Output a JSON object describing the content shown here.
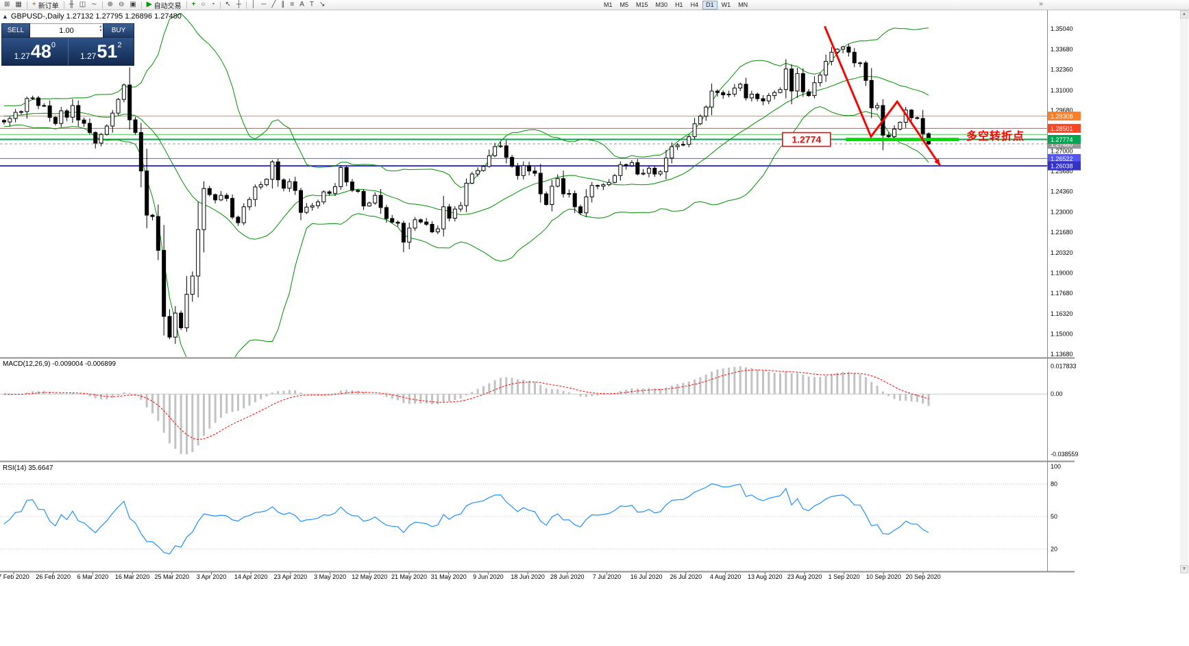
{
  "icons": {
    "collapse": "▲",
    "spin_up": "▴",
    "spin_down": "▾",
    "scroll_up": "▲",
    "scroll_down": "▼",
    "overflow": "»"
  },
  "colors": {
    "bollinger": "#008f00",
    "macd_hist": "#c2c2c2",
    "macd_signal": "#ff0000",
    "rsi_line": "#1e90ff",
    "trend": "#ff0000",
    "support": "#00dd00",
    "panel_top": "#2d5187",
    "panel_bottom": "#122a50",
    "level_orange": "#ff7f27",
    "level_red": "#ff4422",
    "level_green": "#00a651",
    "level_blue": "#5555ff",
    "level_darkblue": "#3333cc"
  },
  "toolbar": {
    "groups": [
      {
        "items": [
          {
            "n": "new-chart-icon",
            "g": "⊞"
          },
          {
            "n": "chart-profiles-icon",
            "g": "▦"
          }
        ]
      },
      {
        "items": [
          {
            "n": "new-order-button",
            "g": "+",
            "c": "#d48806",
            "label": "新订单"
          }
        ]
      },
      {
        "items": [
          {
            "n": "bar-chart-icon",
            "g": "╫"
          },
          {
            "n": "candlestick-chart-icon",
            "g": "◫"
          },
          {
            "n": "line-chart-icon",
            "g": "∼"
          }
        ]
      },
      {
        "items": [
          {
            "n": "zoom-in-icon",
            "g": "⊕"
          },
          {
            "n": "zoom-out-icon",
            "g": "⊖"
          },
          {
            "n": "tile-windows-icon",
            "g": "▣"
          }
        ]
      },
      {
        "items": [
          {
            "n": "autotrading-button",
            "g": "▶",
            "c": "#009900",
            "label": "自动交易"
          }
        ]
      },
      {
        "items": [
          {
            "n": "add-indicator-icon",
            "g": "+",
            "c": "#009900"
          },
          {
            "n": "shapes-icon",
            "g": "○"
          },
          {
            "n": "cycle-lines-icon",
            "g": "◔"
          }
        ]
      },
      {
        "items": [
          {
            "n": "cursor-icon",
            "g": "↖"
          },
          {
            "n": "crosshair-icon",
            "g": "┼"
          }
        ]
      },
      {
        "items": [
          {
            "n": "vertical-line-icon",
            "g": "│"
          },
          {
            "n": "horizontal-line-icon",
            "g": "─"
          },
          {
            "n": "trendline-icon",
            "g": "╱"
          },
          {
            "n": "equidistant-channel-icon",
            "g": "∥"
          },
          {
            "n": "fibonacci-icon",
            "g": "≡"
          },
          {
            "n": "text-icon",
            "g": "A"
          },
          {
            "n": "text-label-icon",
            "g": "T"
          },
          {
            "n": "arrow-object-icon",
            "g": "↘"
          }
        ]
      }
    ],
    "timeframes": [
      "M1",
      "M5",
      "M15",
      "M30",
      "H1",
      "H4",
      "D1",
      "W1",
      "MN"
    ],
    "active_timeframe": "D1"
  },
  "chart": {
    "title": "GBPUSD-,Daily 1.27132 1.27795 1.26896 1.27480",
    "one_click": {
      "sell_label": "SELL",
      "buy_label": "BUY",
      "volume": "1.00",
      "sell_price_small": "1.27",
      "sell_price_big": "48",
      "sell_price_sup": "0",
      "buy_price_small": "1.27",
      "buy_price_big": "51",
      "buy_price_sup": "2"
    }
  },
  "indicators": {
    "macd_label": "MACD(12,26,9) -0.009004 -0.006899",
    "macd_axis": [
      "0.017833",
      "0.00",
      "-0.038559"
    ],
    "rsi_label": "RSI(14) 35.6647",
    "rsi_axis": [
      "100",
      "80",
      "50",
      "20"
    ]
  },
  "dates": [
    "7 Feb 2020",
    "26 Feb 2020",
    "6 Mar 2020",
    "16 Mar 2020",
    "25 Mar 2020",
    "3 Apr 2020",
    "14 Apr 2020",
    "23 Apr 2020",
    "3 May 2020",
    "12 May 2020",
    "21 May 2020",
    "31 May 2020",
    "9 Jun 2020",
    "18 Jun 2020",
    "28 Jun 2020",
    "7 Jul 2020",
    "16 Jul 2020",
    "26 Jul 2020",
    "4 Aug 2020",
    "13 Aug 2020",
    "23 Aug 2020",
    "1 Sep 2020",
    "10 Sep 2020",
    "20 Sep 2020"
  ],
  "chart_data": {
    "type": "candlestick",
    "symbol": "GBPUSD-",
    "period": "Daily",
    "ohlc": {
      "open": 1.27132,
      "high": 1.27795,
      "low": 1.26896,
      "close": 1.2748
    },
    "ylim": [
      1.1349,
      1.363
    ],
    "y_axis_labels": [
      "1.35040",
      "1.33680",
      "1.32360",
      "1.31000",
      "1.29680",
      "1.28360",
      "1.27000",
      "1.25680",
      "1.24360",
      "1.23000",
      "1.21680",
      "1.20320",
      "1.19000",
      "1.17680",
      "1.16320",
      "1.15000",
      "1.13680"
    ],
    "closes": [
      1.2892,
      1.2915,
      1.2955,
      1.296,
      1.3046,
      1.305,
      1.3,
      1.2998,
      1.2922,
      1.2882,
      1.2965,
      1.2923,
      1.3,
      1.2905,
      1.2883,
      1.2823,
      1.2753,
      1.281,
      1.2865,
      1.295,
      1.304,
      1.3135,
      1.2906,
      1.2823,
      1.257,
      1.228,
      1.2271,
      1.2049,
      1.1615,
      1.1479,
      1.1637,
      1.154,
      1.176,
      1.188,
      1.2185,
      1.2455,
      1.2415,
      1.238,
      1.241,
      1.239,
      1.2267,
      1.223,
      1.2335,
      1.2383,
      1.2465,
      1.248,
      1.2516,
      1.263,
      1.2512,
      1.2457,
      1.25,
      1.2442,
      1.2298,
      1.2333,
      1.2342,
      1.2367,
      1.2433,
      1.2423,
      1.2467,
      1.2593,
      1.2498,
      1.2443,
      1.2436,
      1.234,
      1.236,
      1.241,
      1.233,
      1.2258,
      1.2234,
      1.2227,
      1.2103,
      1.2195,
      1.225,
      1.2235,
      1.222,
      1.217,
      1.219,
      1.2335,
      1.226,
      1.232,
      1.2343,
      1.249,
      1.255,
      1.2573,
      1.26,
      1.267,
      1.273,
      1.2735,
      1.266,
      1.2601,
      1.254,
      1.2605,
      1.257,
      1.2555,
      1.242,
      1.235,
      1.247,
      1.252,
      1.242,
      1.2422,
      1.2335,
      1.2295,
      1.24,
      1.2475,
      1.247,
      1.248,
      1.2495,
      1.254,
      1.2612,
      1.2605,
      1.2625,
      1.255,
      1.2555,
      1.2588,
      1.255,
      1.2565,
      1.2655,
      1.273,
      1.274,
      1.2745,
      1.2795,
      1.288,
      1.293,
      1.299,
      1.3095,
      1.3085,
      1.307,
      1.3075,
      1.3115,
      1.314,
      1.305,
      1.3075,
      1.3045,
      1.303,
      1.3065,
      1.3085,
      1.3105,
      1.324,
      1.3095,
      1.321,
      1.309,
      1.3065,
      1.315,
      1.32,
      1.329,
      1.335,
      1.337,
      1.3385,
      1.335,
      1.328,
      1.328,
      1.3165,
      1.2985,
      1.3,
      1.2805,
      1.2795,
      1.2845,
      1.289,
      1.297,
      1.292,
      1.2915,
      1.2815,
      1.2748
    ],
    "bollinger": {
      "period": 20,
      "deviation": 2
    },
    "macd": {
      "fast": 12,
      "slow": 26,
      "signal": 9,
      "ylim": [
        -0.0425,
        0.0225
      ],
      "values": [
        -0.009004,
        -0.006899
      ]
    },
    "rsi": {
      "period": 14,
      "value": 35.6647,
      "levels": [
        80,
        50,
        20
      ]
    },
    "h_lines": [
      {
        "price": 1.29308,
        "color": "#ff7f27",
        "width": 1,
        "label": "1.29308"
      },
      {
        "price": 1.28501,
        "color": "#ff4422",
        "width": 1,
        "label": "1.28501"
      },
      {
        "price": 1.281,
        "color": "#44cc44",
        "width": 1
      },
      {
        "price": 1.27774,
        "color": "#00a651",
        "width": 2,
        "label": "1.27774"
      },
      {
        "price": 1.26522,
        "color": "#5555ff",
        "width": 1,
        "label": "1.26522"
      },
      {
        "price": 1.26038,
        "color": "#3333cc",
        "width": 2,
        "label": "1.26038"
      }
    ],
    "bid_line": {
      "price": 1.2748,
      "label": "1.27480",
      "color": "#9a9a9a"
    },
    "trend_line": {
      "points": [
        [
          143.8,
          1.352
        ],
        [
          151.9,
          1.2796
        ],
        [
          156.5,
          1.3026
        ],
        [
          164.0,
          1.2607
        ]
      ],
      "color": "#ff0000",
      "width": 3,
      "arrow_end": true
    },
    "support_segment": {
      "from_i": 147.5,
      "to_i": 167.3,
      "price": 1.2777,
      "width": 5,
      "color": "#00dd00"
    },
    "price_box": {
      "text": "1.2774",
      "anchor_i": 144.8,
      "price": 1.2777
    },
    "turning_label": {
      "text": "多空转折点",
      "anchor_i": 168.6,
      "price": 1.2802
    }
  }
}
